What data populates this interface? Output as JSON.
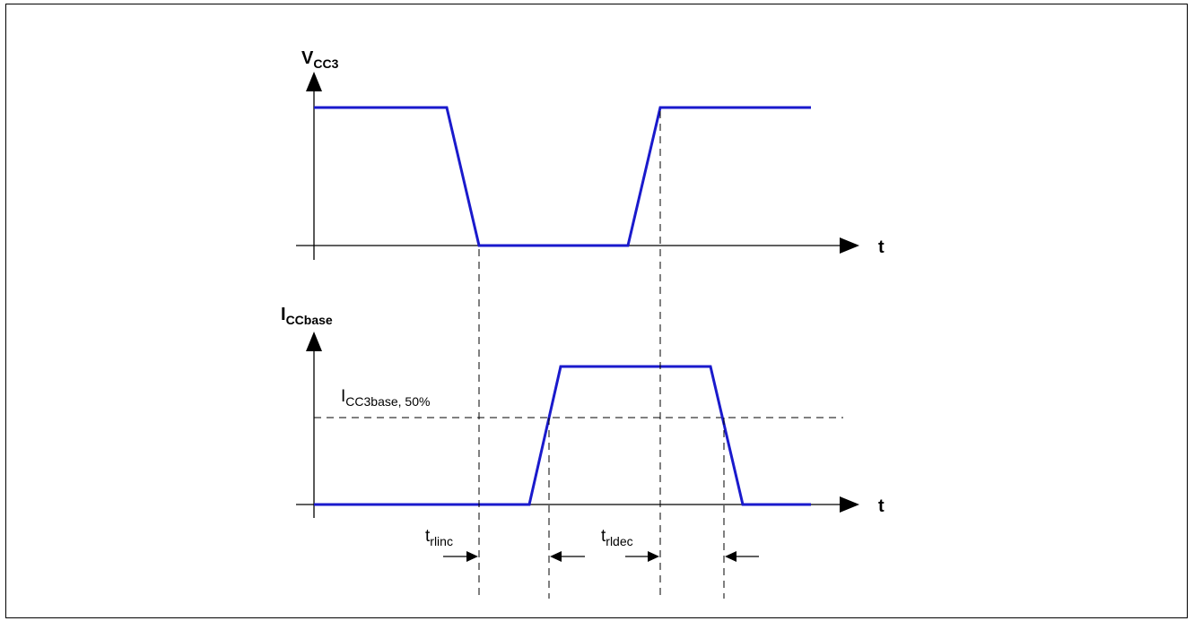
{
  "top_axis": {
    "symbol": "V",
    "subscript": "CC3"
  },
  "bottom_axis": {
    "symbol": "I",
    "subscript": "CCbase"
  },
  "time_label": "t",
  "threshold": {
    "symbol": "I",
    "subscript": "CC3base, 50%"
  },
  "timing": [
    {
      "symbol": "t",
      "subscript": "rlinc"
    },
    {
      "symbol": "t",
      "subscript": "rldec"
    }
  ],
  "colors": {
    "waveform": "#1a1acc",
    "axis": "#000000"
  }
}
